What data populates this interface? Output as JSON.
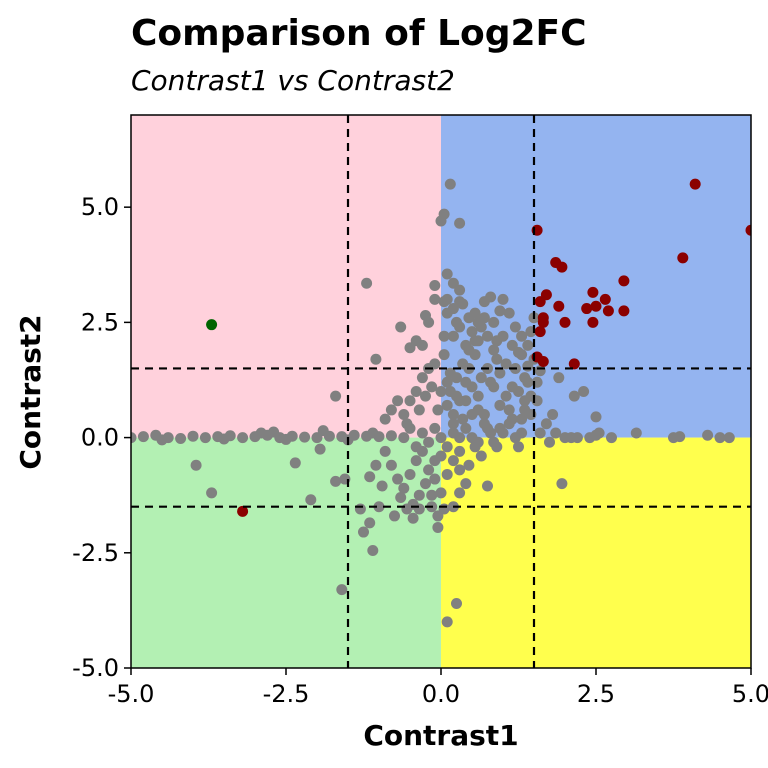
{
  "chart_data": {
    "type": "scatter",
    "title": "Comparison of Log2FC",
    "subtitle": "Contrast1 vs Contrast2",
    "xlabel": "Contrast1",
    "ylabel": "Contrast2",
    "xlim": [
      -5.0,
      5.0
    ],
    "ylim": [
      -5.0,
      7.0
    ],
    "x_ticks": [
      -5.0,
      -2.5,
      0.0,
      2.5,
      5.0
    ],
    "x_tick_labels": [
      "-5.0",
      "-2.5",
      "0.0",
      "2.5",
      "5.0"
    ],
    "y_ticks": [
      -5.0,
      -2.5,
      0.0,
      2.5,
      5.0
    ],
    "y_tick_labels": [
      "-5.0",
      "-2.5",
      "0.0",
      "2.5",
      "5.0"
    ],
    "grid": false,
    "thresholds": {
      "x": [
        -1.5,
        1.5
      ],
      "y": [
        -1.5,
        1.5
      ]
    },
    "quadrant_colors": {
      "upper_left": "#ffd1dc",
      "upper_right": "#94b4f0",
      "lower_left": "#b3f0b3",
      "lower_right": "#ffff4d"
    },
    "point_colors": {
      "grey": "#808080",
      "darkred": "#8b0000",
      "darkgreen": "#006400"
    },
    "series": [
      {
        "color": "#808080",
        "points": [
          [
            -5.0,
            0.0
          ],
          [
            -4.8,
            0.02
          ],
          [
            -4.6,
            0.05
          ],
          [
            -4.4,
            0.0
          ],
          [
            -4.2,
            -0.02
          ],
          [
            -4.0,
            0.03
          ],
          [
            -3.8,
            0.0
          ],
          [
            -3.6,
            0.02
          ],
          [
            -3.4,
            0.04
          ],
          [
            -3.2,
            0.0
          ],
          [
            -3.0,
            0.02
          ],
          [
            -2.8,
            0.05
          ],
          [
            -2.6,
            0.0
          ],
          [
            -2.4,
            0.03
          ],
          [
            -2.2,
            0.01
          ],
          [
            -2.0,
            0.0
          ],
          [
            -1.8,
            0.03
          ],
          [
            -1.6,
            0.02
          ],
          [
            -1.4,
            0.05
          ],
          [
            -1.2,
            0.03
          ],
          [
            -1.0,
            0.02
          ],
          [
            -0.8,
            0.04
          ],
          [
            -4.5,
            -0.05
          ],
          [
            -3.5,
            -0.03
          ],
          [
            -2.5,
            -0.04
          ],
          [
            -1.5,
            -0.05
          ],
          [
            -2.9,
            0.1
          ],
          [
            -2.7,
            0.12
          ],
          [
            -1.9,
            0.15
          ],
          [
            -1.1,
            0.1
          ],
          [
            -3.95,
            -0.6
          ],
          [
            -3.7,
            -1.2
          ],
          [
            -2.35,
            -0.55
          ],
          [
            -2.1,
            -1.35
          ],
          [
            -1.7,
            -0.95
          ],
          [
            -1.55,
            -0.9
          ],
          [
            -1.15,
            -0.85
          ],
          [
            -1.05,
            -0.6
          ],
          [
            -0.95,
            -1.05
          ],
          [
            -1.7,
            0.9
          ],
          [
            -1.3,
            -1.55
          ],
          [
            -1.25,
            -2.05
          ],
          [
            -1.15,
            -1.85
          ],
          [
            -1.1,
            -2.45
          ],
          [
            -1.0,
            -1.5
          ],
          [
            -1.95,
            -0.25
          ],
          [
            -1.2,
            3.35
          ],
          [
            -1.05,
            1.7
          ],
          [
            -0.9,
            0.4
          ],
          [
            -0.8,
            0.6
          ],
          [
            -0.7,
            0.8
          ],
          [
            -0.65,
            2.4
          ],
          [
            -0.75,
            -1.7
          ],
          [
            -0.55,
            0.3
          ],
          [
            -0.45,
            -1.75
          ],
          [
            -0.35,
            -1.55
          ],
          [
            -0.3,
            2.0
          ],
          [
            -0.2,
            2.5
          ],
          [
            -0.15,
            -1.5
          ],
          [
            -0.1,
            3.0
          ],
          [
            -1.6,
            -3.3
          ],
          [
            0.1,
            -4.0
          ],
          [
            0.25,
            -3.6
          ],
          [
            -0.05,
            -1.95
          ],
          [
            -0.1,
            3.3
          ],
          [
            0.0,
            4.7
          ],
          [
            0.05,
            4.85
          ],
          [
            0.15,
            5.5
          ],
          [
            0.3,
            4.65
          ],
          [
            0.05,
            2.2
          ],
          [
            0.1,
            3.0
          ],
          [
            0.2,
            2.8
          ],
          [
            0.25,
            2.5
          ],
          [
            0.3,
            3.2
          ],
          [
            0.4,
            2.0
          ],
          [
            0.45,
            1.5
          ],
          [
            0.5,
            2.3
          ],
          [
            0.55,
            1.8
          ],
          [
            0.6,
            2.1
          ],
          [
            0.7,
            2.6
          ],
          [
            0.8,
            1.2
          ],
          [
            0.9,
            1.7
          ],
          [
            1.0,
            2.2
          ],
          [
            1.2,
            1.5
          ],
          [
            1.3,
            1.8
          ],
          [
            1.4,
            2.0
          ],
          [
            1.45,
            2.3
          ],
          [
            1.4,
            1.2
          ],
          [
            1.5,
            2.6
          ],
          [
            0.95,
            2.75
          ],
          [
            1.0,
            3.0
          ],
          [
            0.7,
            2.95
          ],
          [
            0.8,
            3.05
          ],
          [
            1.2,
            2.4
          ],
          [
            1.35,
            1.3
          ],
          [
            0.4,
            0.8
          ],
          [
            0.6,
            0.9
          ],
          [
            0.75,
            -1.05
          ],
          [
            0.85,
            1.1
          ],
          [
            0.95,
            0.7
          ],
          [
            1.05,
            0.9
          ],
          [
            1.1,
            0.6
          ],
          [
            1.15,
            0.4
          ],
          [
            1.25,
            -0.2
          ],
          [
            1.3,
            0.1
          ],
          [
            1.35,
            0.8
          ],
          [
            1.5,
            1.7
          ],
          [
            0.65,
            1.3
          ],
          [
            0.5,
            1.1
          ],
          [
            0.35,
            0.4
          ],
          [
            0.25,
            0.9
          ],
          [
            0.15,
            1.4
          ],
          [
            0.05,
            1.8
          ],
          [
            0.1,
            1.2
          ],
          [
            0.2,
            0.3
          ],
          [
            0.3,
            -0.3
          ],
          [
            0.45,
            -0.6
          ],
          [
            0.55,
            -0.2
          ],
          [
            0.65,
            -0.4
          ],
          [
            0.75,
            0.2
          ],
          [
            0.85,
            -0.1
          ],
          [
            0.95,
            0.2
          ],
          [
            0.4,
            -1.0
          ],
          [
            0.3,
            -1.2
          ],
          [
            0.2,
            -1.5
          ],
          [
            1.95,
            -1.0
          ],
          [
            1.75,
            -0.1
          ],
          [
            1.85,
            0.1
          ],
          [
            2.0,
            0.0
          ],
          [
            2.1,
            0.0
          ],
          [
            2.2,
            0.0
          ],
          [
            2.4,
            0.0
          ],
          [
            2.55,
            0.1
          ],
          [
            2.75,
            0.0
          ],
          [
            3.15,
            0.1
          ],
          [
            3.75,
            0.0
          ],
          [
            3.85,
            0.02
          ],
          [
            4.3,
            0.05
          ],
          [
            4.5,
            0.0
          ],
          [
            4.65,
            0.0
          ],
          [
            2.3,
            1.0
          ],
          [
            2.15,
            0.9
          ],
          [
            1.9,
            1.3
          ],
          [
            2.5,
            0.45
          ],
          [
            1.25,
            1.85
          ],
          [
            1.6,
            1.45
          ],
          [
            1.4,
            1.55
          ],
          [
            1.55,
            1.2
          ],
          [
            1.55,
            0.8
          ],
          [
            1.45,
            0.5
          ],
          [
            1.7,
            0.3
          ],
          [
            1.6,
            0.1
          ],
          [
            1.8,
            0.5
          ],
          [
            2.5,
            0.05
          ],
          [
            -0.6,
            0.0
          ],
          [
            -0.5,
            0.2
          ],
          [
            -0.4,
            -0.2
          ],
          [
            -0.3,
            0.1
          ],
          [
            -0.2,
            -0.1
          ],
          [
            -0.1,
            0.2
          ],
          [
            0.0,
            0.0
          ],
          [
            0.1,
            -0.2
          ],
          [
            0.2,
            0.1
          ],
          [
            0.3,
            0.0
          ],
          [
            0.4,
            0.2
          ],
          [
            0.5,
            0.0
          ],
          [
            0.6,
            -0.1
          ],
          [
            0.7,
            0.3
          ],
          [
            0.8,
            0.1
          ],
          [
            0.9,
            -0.2
          ],
          [
            1.0,
            0.1
          ],
          [
            1.1,
            0.3
          ],
          [
            1.2,
            0.0
          ],
          [
            1.3,
            0.4
          ],
          [
            -0.9,
            -0.3
          ],
          [
            -0.8,
            -0.6
          ],
          [
            -0.7,
            -0.9
          ],
          [
            -0.6,
            -1.1
          ],
          [
            -0.5,
            -0.8
          ],
          [
            -0.4,
            -0.5
          ],
          [
            -0.3,
            -0.3
          ],
          [
            -0.2,
            -0.7
          ],
          [
            -0.1,
            -0.9
          ],
          [
            0.0,
            -1.2
          ],
          [
            0.1,
            -0.8
          ],
          [
            0.2,
            -0.5
          ],
          [
            0.3,
            -0.7
          ],
          [
            0.0,
            -0.4
          ],
          [
            -0.1,
            -0.5
          ],
          [
            -0.25,
            -1.0
          ],
          [
            -0.35,
            -1.25
          ],
          [
            -0.45,
            -1.45
          ],
          [
            -0.55,
            -1.55
          ],
          [
            -0.65,
            -1.3
          ],
          [
            -0.15,
            -1.25
          ],
          [
            0.05,
            -1.55
          ],
          [
            -0.05,
            -1.7
          ],
          [
            -0.6,
            0.5
          ],
          [
            -0.5,
            0.8
          ],
          [
            -0.4,
            1.0
          ],
          [
            -0.3,
            1.3
          ],
          [
            -0.2,
            1.5
          ],
          [
            -0.1,
            1.6
          ],
          [
            0.0,
            1.0
          ],
          [
            0.1,
            0.7
          ],
          [
            0.2,
            0.5
          ],
          [
            0.3,
            0.8
          ],
          [
            0.4,
            1.2
          ],
          [
            0.5,
            0.5
          ],
          [
            0.6,
            0.6
          ],
          [
            0.7,
            0.5
          ],
          [
            -0.35,
            0.6
          ],
          [
            -0.25,
            0.9
          ],
          [
            -0.15,
            1.1
          ],
          [
            -0.05,
            0.6
          ],
          [
            0.15,
            1.0
          ],
          [
            0.25,
            1.3
          ],
          [
            0.35,
            1.6
          ],
          [
            0.45,
            1.9
          ],
          [
            0.55,
            2.1
          ],
          [
            0.65,
            2.4
          ],
          [
            0.75,
            1.5
          ],
          [
            0.85,
            1.9
          ],
          [
            0.95,
            1.4
          ],
          [
            1.05,
            1.6
          ],
          [
            1.15,
            1.1
          ],
          [
            1.25,
            1.0
          ],
          [
            1.35,
            0.6
          ],
          [
            1.45,
            0.9
          ],
          [
            0.1,
            2.7
          ],
          [
            0.2,
            2.2
          ],
          [
            0.3,
            2.4
          ],
          [
            0.35,
            2.9
          ],
          [
            0.45,
            2.6
          ],
          [
            0.55,
            2.7
          ],
          [
            0.6,
            2.5
          ],
          [
            0.75,
            2.2
          ],
          [
            0.85,
            2.5
          ],
          [
            0.9,
            2.1
          ],
          [
            1.1,
            2.7
          ],
          [
            1.15,
            2.0
          ],
          [
            1.3,
            2.2
          ],
          [
            0.1,
            3.55
          ],
          [
            0.2,
            3.35
          ],
          [
            0.3,
            2.95
          ],
          [
            0.05,
            2.95
          ],
          [
            -0.25,
            2.65
          ],
          [
            -0.4,
            2.1
          ],
          [
            -0.5,
            1.95
          ]
        ]
      },
      {
        "color": "#8b0000",
        "points": [
          [
            4.1,
            5.5
          ],
          [
            5.0,
            4.5
          ],
          [
            1.55,
            4.5
          ],
          [
            3.9,
            3.9
          ],
          [
            1.85,
            3.8
          ],
          [
            1.95,
            3.7
          ],
          [
            2.95,
            3.4
          ],
          [
            1.7,
            3.1
          ],
          [
            2.45,
            3.15
          ],
          [
            2.65,
            3.0
          ],
          [
            1.6,
            2.95
          ],
          [
            1.9,
            2.85
          ],
          [
            2.35,
            2.8
          ],
          [
            2.5,
            2.85
          ],
          [
            2.7,
            2.75
          ],
          [
            2.95,
            2.75
          ],
          [
            1.65,
            2.6
          ],
          [
            1.65,
            2.5
          ],
          [
            2.0,
            2.5
          ],
          [
            2.45,
            2.5
          ],
          [
            1.6,
            2.3
          ],
          [
            1.55,
            1.75
          ],
          [
            1.65,
            1.65
          ],
          [
            2.15,
            1.6
          ],
          [
            -3.2,
            -1.6
          ]
        ]
      },
      {
        "color": "#006400",
        "points": [
          [
            -3.7,
            2.45
          ]
        ]
      }
    ]
  }
}
